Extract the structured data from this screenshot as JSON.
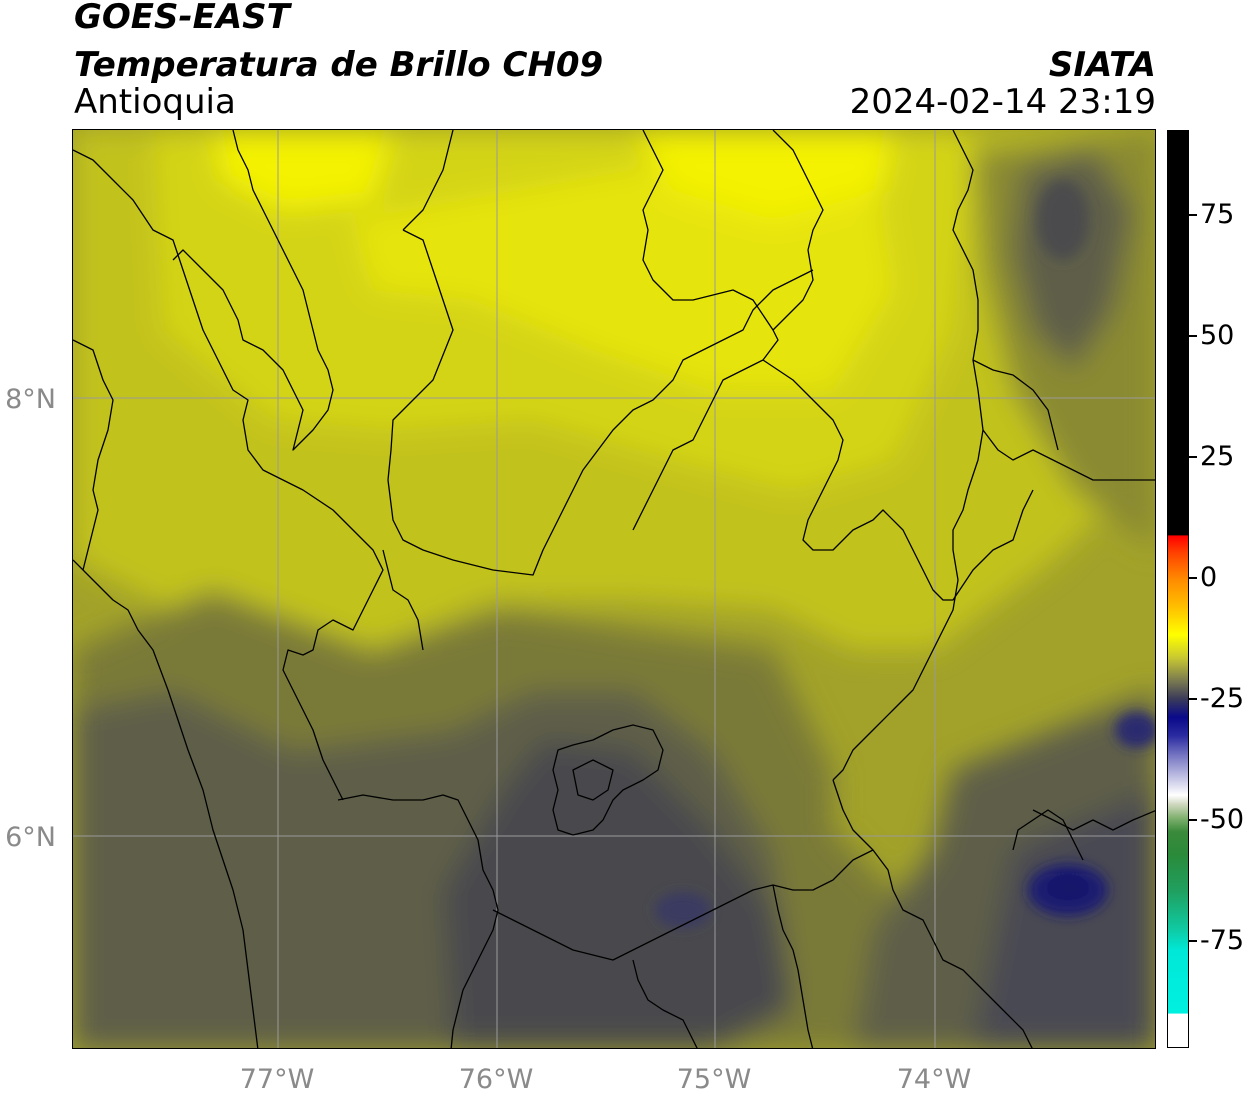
{
  "header": {
    "satellite": "GOES-EAST",
    "product": "Temperatura de Brillo CH09",
    "region": "Antioquia",
    "organization": "SIATA",
    "timestamp": "2024-02-14 23:19"
  },
  "map": {
    "lat_labels": [
      "8°N",
      "6°N"
    ],
    "lon_labels": [
      "77°W",
      "76°W",
      "75°W",
      "74°W"
    ],
    "colors": {
      "bright_yellow": "#f2f000",
      "yellow": "#dede10",
      "olive_yellow": "#c2c21e",
      "olive": "#a2a22a",
      "dark_olive": "#7a7a38",
      "grey_olive": "#5e5e48",
      "dark_grey": "#4a4a4e",
      "navy": "#1e1e72",
      "grid": "#9a9a9a",
      "border": "#000000"
    }
  },
  "colorbar": {
    "tick_labels": [
      "75",
      "50",
      "25",
      "0",
      "-25",
      "-50",
      "-75"
    ]
  }
}
